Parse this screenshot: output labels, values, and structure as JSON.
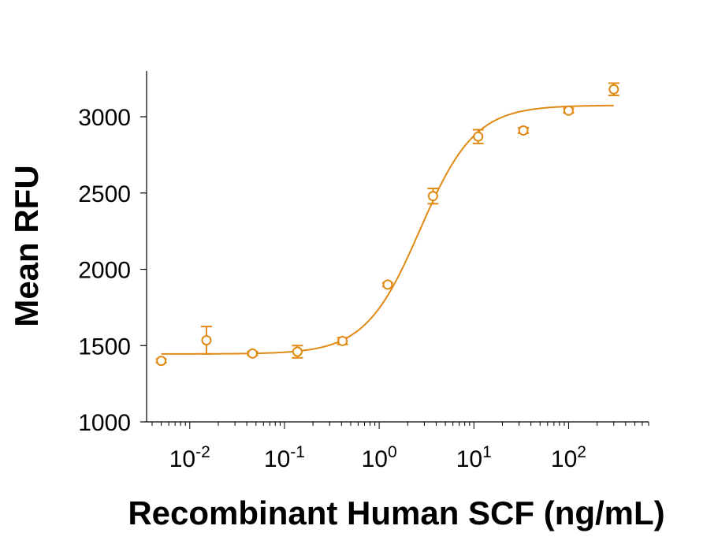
{
  "chart_data": {
    "type": "scatter",
    "title": "",
    "xlabel": "Recombinant Human SCF (ng/mL)",
    "ylabel": "Mean RFU",
    "x_scale": "log",
    "xlim": [
      0.0035,
      700
    ],
    "ylim": [
      1000,
      3300
    ],
    "x_ticks": [
      {
        "value": 0.01,
        "base": "10",
        "exp": "-2"
      },
      {
        "value": 0.1,
        "base": "10",
        "exp": "-1"
      },
      {
        "value": 1,
        "base": "10",
        "exp": "0"
      },
      {
        "value": 10,
        "base": "10",
        "exp": "1"
      },
      {
        "value": 100,
        "base": "10",
        "exp": "2"
      }
    ],
    "y_ticks": [
      {
        "value": 1000,
        "label": "1000"
      },
      {
        "value": 1500,
        "label": "1500"
      },
      {
        "value": 2000,
        "label": "2000"
      },
      {
        "value": 2500,
        "label": "2500"
      },
      {
        "value": 3000,
        "label": "3000"
      }
    ],
    "grid": false,
    "color": "#E08A14",
    "series": [
      {
        "points": [
          {
            "x": 0.005,
            "y": 1400,
            "err": 12
          },
          {
            "x": 0.015,
            "y": 1535,
            "err": 90
          },
          {
            "x": 0.046,
            "y": 1448,
            "err": 12
          },
          {
            "x": 0.137,
            "y": 1460,
            "err": 40
          },
          {
            "x": 0.41,
            "y": 1530,
            "err": 22
          },
          {
            "x": 1.23,
            "y": 1900,
            "err": 12
          },
          {
            "x": 3.7,
            "y": 2480,
            "err": 50
          },
          {
            "x": 11.1,
            "y": 2870,
            "err": 45
          },
          {
            "x": 33.3,
            "y": 2910,
            "err": 18
          },
          {
            "x": 100,
            "y": 3040,
            "err": 15
          },
          {
            "x": 300,
            "y": 3180,
            "err": 40
          }
        ],
        "fit": {
          "model": "4PL",
          "bottom": 1445,
          "top": 3075,
          "ec50": 2.7,
          "hill": 1.5
        }
      }
    ]
  }
}
